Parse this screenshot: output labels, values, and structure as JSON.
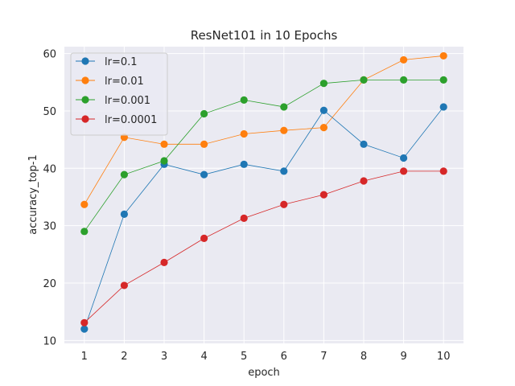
{
  "chart_data": {
    "type": "line",
    "title": "ResNet101 in 10 Epochs",
    "xlabel": "epoch",
    "ylabel": "accuracy_top-1",
    "x": [
      1,
      2,
      3,
      4,
      5,
      6,
      7,
      8,
      9,
      10
    ],
    "xlim": [
      0.5,
      10.5
    ],
    "ylim": [
      9.5,
      61.2
    ],
    "yticks": [
      10,
      20,
      30,
      40,
      50,
      60
    ],
    "grid": true,
    "legend_position": "upper-left",
    "background_color": "#EAEAF2",
    "series": [
      {
        "name": "lr=0.1",
        "color": "#1f77b4",
        "values": [
          12.0,
          32.0,
          40.7,
          38.9,
          40.7,
          39.5,
          50.1,
          44.2,
          41.8,
          50.7
        ]
      },
      {
        "name": "lr=0.01",
        "color": "#ff7f0e",
        "values": [
          33.7,
          45.4,
          44.2,
          44.2,
          46.0,
          46.6,
          47.1,
          55.4,
          58.9,
          59.6
        ]
      },
      {
        "name": "lr=0.001",
        "color": "#2ca02c",
        "values": [
          29.0,
          38.9,
          41.3,
          49.5,
          51.9,
          50.7,
          54.8,
          55.4,
          55.4,
          55.4
        ]
      },
      {
        "name": "lr=0.0001",
        "color": "#d62728",
        "values": [
          13.1,
          19.6,
          23.6,
          27.8,
          31.3,
          33.7,
          35.4,
          37.8,
          39.5,
          39.5
        ]
      }
    ]
  }
}
